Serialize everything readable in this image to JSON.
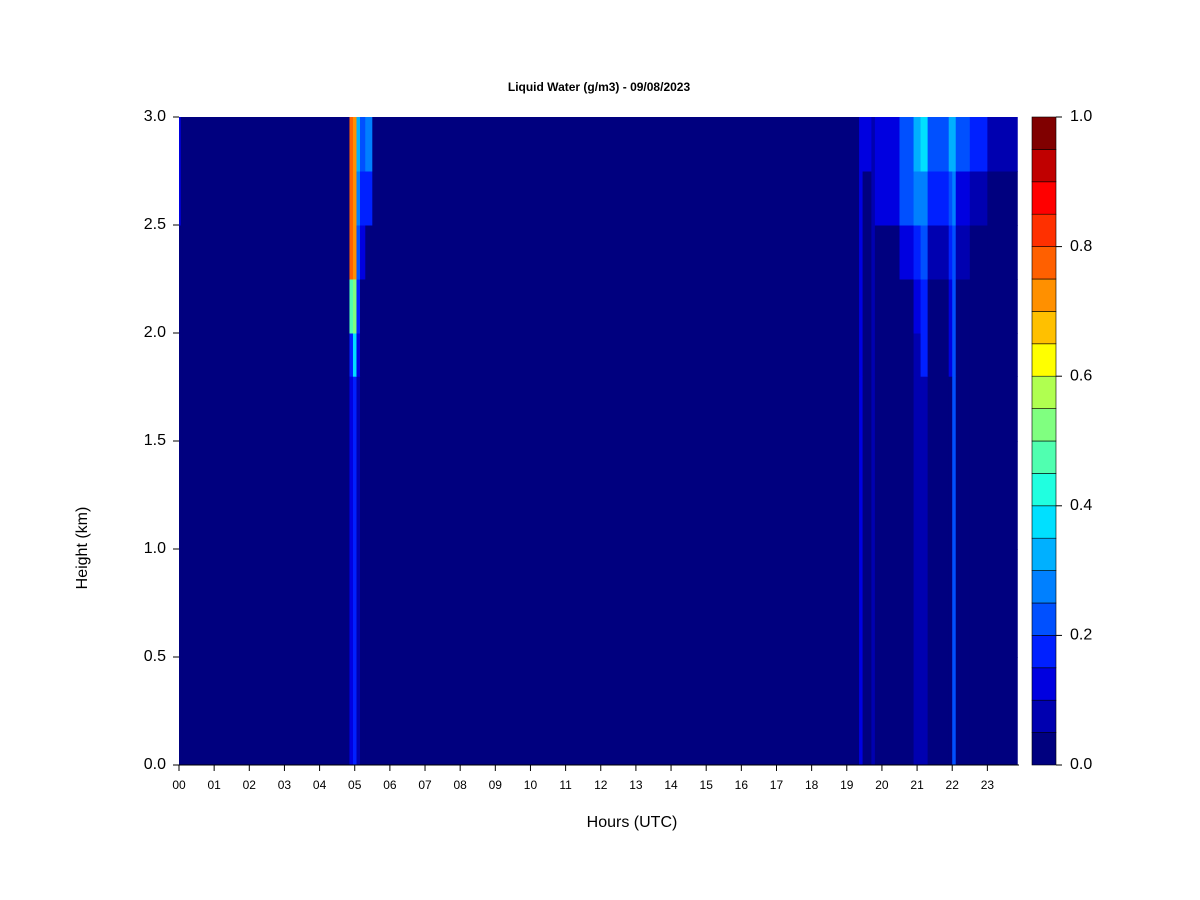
{
  "chart_data": {
    "type": "heatmap",
    "title": "Liquid Water (g/m3) - 09/08/2023",
    "x_label": "Hours (UTC)",
    "y_label": "Height (km)",
    "x_edges": [
      0,
      0.05,
      0.1,
      4.85,
      4.95,
      5.05,
      5.15,
      5.3,
      5.5,
      19.35,
      19.45,
      19.7,
      19.8,
      20.5,
      20.9,
      21.1,
      21.3,
      21.9,
      22.0,
      22.1,
      22.5,
      23.0,
      23.85
    ],
    "y_edges": [
      0,
      0.5,
      1.0,
      1.5,
      1.8,
      2.0,
      2.25,
      2.5,
      2.75,
      3.0
    ],
    "values": [
      [
        0.02,
        0.02,
        0.02,
        0.1,
        0.15,
        0.05,
        0.02,
        0.02,
        0.02,
        0.1,
        0.02,
        0.08,
        0.02,
        0.02,
        0.05,
        0.08,
        0.02,
        0.02,
        0.2,
        0.02,
        0.02,
        0.02
      ],
      [
        0.02,
        0.02,
        0.02,
        0.1,
        0.15,
        0.05,
        0.02,
        0.02,
        0.02,
        0.1,
        0.02,
        0.08,
        0.02,
        0.02,
        0.05,
        0.08,
        0.02,
        0.02,
        0.2,
        0.02,
        0.02,
        0.02
      ],
      [
        0.02,
        0.02,
        0.02,
        0.1,
        0.15,
        0.05,
        0.02,
        0.02,
        0.02,
        0.1,
        0.02,
        0.08,
        0.02,
        0.02,
        0.05,
        0.08,
        0.02,
        0.02,
        0.2,
        0.02,
        0.02,
        0.02
      ],
      [
        0.02,
        0.02,
        0.02,
        0.1,
        0.15,
        0.05,
        0.02,
        0.02,
        0.02,
        0.1,
        0.02,
        0.08,
        0.02,
        0.02,
        0.05,
        0.08,
        0.02,
        0.02,
        0.2,
        0.02,
        0.02,
        0.02
      ],
      [
        0.02,
        0.02,
        0.02,
        0.15,
        0.35,
        0.1,
        0.02,
        0.02,
        0.02,
        0.1,
        0.02,
        0.08,
        0.02,
        0.02,
        0.05,
        0.15,
        0.02,
        0.1,
        0.2,
        0.02,
        0.02,
        0.02
      ],
      [
        0.02,
        0.02,
        0.02,
        0.45,
        0.5,
        0.15,
        0.02,
        0.02,
        0.02,
        0.1,
        0.02,
        0.08,
        0.02,
        0.02,
        0.1,
        0.15,
        0.02,
        0.1,
        0.2,
        0.02,
        0.02,
        0.02
      ],
      [
        0.02,
        0.02,
        0.02,
        0.75,
        0.7,
        0.2,
        0.1,
        0.02,
        0.02,
        0.1,
        0.02,
        0.08,
        0.02,
        0.1,
        0.15,
        0.2,
        0.05,
        0.15,
        0.2,
        0.05,
        0.02,
        0.02
      ],
      [
        0.1,
        0.02,
        0.02,
        0.75,
        0.7,
        0.25,
        0.15,
        0.15,
        0.02,
        0.1,
        0.02,
        0.08,
        0.1,
        0.2,
        0.25,
        0.25,
        0.15,
        0.2,
        0.25,
        0.1,
        0.05,
        0.02
      ],
      [
        0.1,
        0.02,
        0.02,
        0.75,
        0.7,
        0.3,
        0.2,
        0.25,
        0.02,
        0.1,
        0.1,
        0.08,
        0.1,
        0.2,
        0.3,
        0.35,
        0.2,
        0.3,
        0.3,
        0.2,
        0.15,
        0.05
      ]
    ],
    "xlim": [
      0,
      23.9
    ],
    "ylim": [
      0,
      3
    ],
    "xticks": [
      {
        "value": 0,
        "label": "00"
      },
      {
        "value": 1,
        "label": "01"
      },
      {
        "value": 2,
        "label": "02"
      },
      {
        "value": 3,
        "label": "03"
      },
      {
        "value": 4,
        "label": "04"
      },
      {
        "value": 5,
        "label": "05"
      },
      {
        "value": 6,
        "label": "06"
      },
      {
        "value": 7,
        "label": "07"
      },
      {
        "value": 8,
        "label": "08"
      },
      {
        "value": 9,
        "label": "09"
      },
      10,
      11,
      12,
      13,
      14,
      15,
      16,
      17,
      18,
      19,
      20,
      21,
      22,
      23
    ],
    "yticks": [
      {
        "value": 0,
        "label": "0.0"
      },
      {
        "value": 0.5,
        "label": "0.5"
      },
      {
        "value": 1,
        "label": "1.0"
      },
      {
        "value": 1.5,
        "label": "1.5"
      },
      {
        "value": 2,
        "label": "2.0"
      },
      {
        "value": 2.5,
        "label": "2.5"
      },
      {
        "value": 3,
        "label": "3.0"
      }
    ],
    "clim": [
      0,
      1
    ],
    "cticks": [
      {
        "value": 0,
        "label": "0.0"
      },
      {
        "value": 0.2,
        "label": "0.2"
      },
      {
        "value": 0.4,
        "label": "0.4"
      },
      {
        "value": 0.6,
        "label": "0.6"
      },
      {
        "value": 0.8,
        "label": "0.8"
      },
      {
        "value": 1,
        "label": "1.0"
      }
    ],
    "colors": [
      "#00007f",
      "#0000b0",
      "#0000e0",
      "#0020ff",
      "#0050ff",
      "#0080ff",
      "#00b0ff",
      "#00e0ff",
      "#20ffe0",
      "#50ffb0",
      "#80ff80",
      "#b0ff50",
      "#ffff00",
      "#ffc000",
      "#ff9000",
      "#ff6000",
      "#ff3000",
      "#ff0000",
      "#c00000",
      "#800000"
    ]
  }
}
